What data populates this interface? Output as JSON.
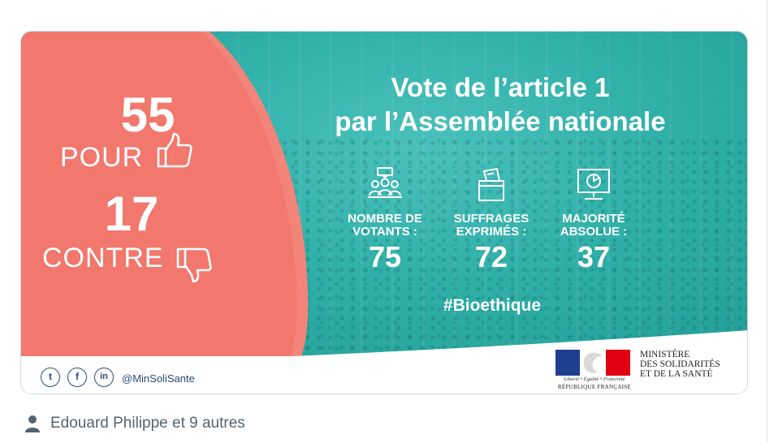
{
  "graphic": {
    "pour": {
      "count": "55",
      "label": "POUR",
      "icon": "thumbs-up-icon"
    },
    "contre": {
      "count": "17",
      "label": "CONTRE",
      "icon": "thumbs-down-icon"
    },
    "headline_line1": "Vote de l’article 1",
    "headline_line2": "par l’Assemblée nationale",
    "stats": [
      {
        "icon": "voters-group-icon",
        "label_line1": "NOMBRE DE",
        "label_line2": "VOTANTS :",
        "value": "75"
      },
      {
        "icon": "ballot-box-icon",
        "label_line1": "SUFFRAGES",
        "label_line2": "EXPRIMÉS :",
        "value": "72"
      },
      {
        "icon": "presentation-chart-icon",
        "label_line1": "MAJORITÉ",
        "label_line2": "ABSOLUE :",
        "value": "37"
      }
    ],
    "hashtag": "#Bioethique",
    "footer": {
      "social_icons": [
        "twitter-icon",
        "facebook-icon",
        "linkedin-icon"
      ],
      "social_glyphs": [
        "t",
        "f",
        "in"
      ],
      "handle": "@MinSoliSante",
      "motto": "Liberté • Égalité • Fraternité",
      "republique": "RÉPUBLIQUE FRANÇAISE",
      "ministry_line1": "MINISTÈRE",
      "ministry_line2": "DES SOLIDARITÉS",
      "ministry_line3": "ET DE LA SANTÉ"
    }
  },
  "social_context": {
    "icon": "person-icon",
    "text": "Edouard Philippe et 9 autres"
  },
  "colors": {
    "salmon": "#f2776c",
    "teal": "#2fafa8",
    "navy": "#2b4a7a",
    "flag_blue": "#1f3f8f",
    "flag_red": "#e1000f",
    "muted": "#536471"
  }
}
